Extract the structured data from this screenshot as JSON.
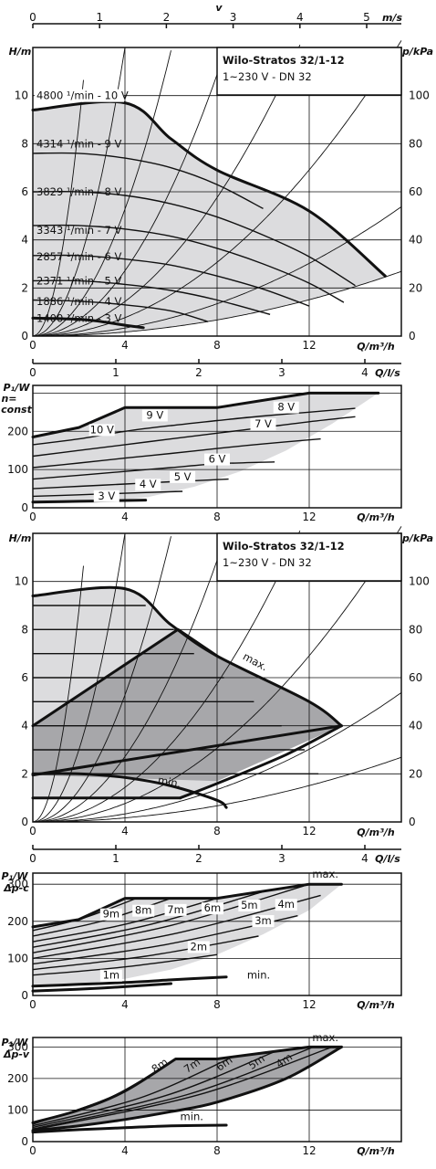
{
  "colors": {
    "light_fill": "#dcdcde",
    "dark_fill": "#a7a7aa",
    "line": "#111111"
  },
  "chart_data": [
    {
      "type": "line",
      "panel": "head-speed-control",
      "title": "Wilo-Stratos 32/1-12",
      "subtitle": "1~230 V - DN 32",
      "xlabel": "Q/m³/h",
      "ylabel": "H/m",
      "y2label": "p/kPa",
      "toplabel": "v",
      "topunit": "m/s",
      "xticks": [
        "0",
        "4",
        "8",
        "12"
      ],
      "yticks": [
        "0",
        "2",
        "4",
        "6",
        "8",
        "10"
      ],
      "y2ticks": [
        "0",
        "20",
        "40",
        "60",
        "80",
        "100"
      ],
      "topticks": [
        "0",
        "1",
        "2",
        "3",
        "4",
        "5"
      ],
      "xlim": [
        0,
        16
      ],
      "ylim": [
        0,
        12
      ],
      "series": [
        {
          "name": "4800 ¹/min - 10 V",
          "x": [
            0,
            4,
            6,
            8,
            12,
            15.3
          ],
          "y": [
            9.4,
            9.7,
            8.2,
            6.9,
            5.2,
            2.5
          ]
        },
        {
          "name": "4314 ¹/min - 9 V",
          "x": [
            0,
            2,
            4,
            6,
            8,
            10
          ],
          "y": [
            7.6,
            7.6,
            7.4,
            7.0,
            6.3,
            5.3
          ]
        },
        {
          "name": "3829 ¹/min - 8 V",
          "x": [
            0,
            2,
            4,
            6,
            8,
            10,
            12,
            14
          ],
          "y": [
            6.0,
            6.0,
            5.85,
            5.5,
            4.95,
            4.2,
            3.3,
            2.1
          ]
        },
        {
          "name": "3343 ¹/min - 7 V",
          "x": [
            0,
            2,
            4,
            6,
            8,
            10,
            12,
            13.5
          ],
          "y": [
            4.6,
            4.6,
            4.45,
            4.15,
            3.65,
            3.0,
            2.2,
            1.4
          ]
        },
        {
          "name": "2857 ¹/min - 6 V",
          "x": [
            0,
            2,
            4,
            6,
            8,
            10,
            12
          ],
          "y": [
            3.35,
            3.35,
            3.2,
            2.95,
            2.5,
            1.95,
            1.25
          ]
        },
        {
          "name": "2371 ¹/min - 5 V",
          "x": [
            0,
            2,
            4,
            6,
            8,
            10.3
          ],
          "y": [
            2.3,
            2.3,
            2.15,
            1.9,
            1.5,
            0.9
          ]
        },
        {
          "name": "1886 ¹/min - 4 V",
          "x": [
            0,
            2,
            4,
            6,
            7.6
          ],
          "y": [
            1.5,
            1.45,
            1.3,
            1.05,
            0.6
          ]
        },
        {
          "name": "1400 ¹/min - 3 V",
          "x": [
            0,
            2,
            3,
            4,
            4.8
          ],
          "y": [
            0.75,
            0.7,
            0.6,
            0.45,
            0.35
          ]
        }
      ]
    },
    {
      "type": "line",
      "panel": "power-n-const",
      "ylabel": "P₁/W",
      "ylabel2": "n=",
      "ylabel3": "const",
      "xlabel": "Q/m³/h",
      "toplabel": "Q/l/s",
      "topticks": [
        "0",
        "1",
        "2",
        "3",
        "4"
      ],
      "xticks": [
        "0",
        "4",
        "8",
        "12"
      ],
      "yticks": [
        "0",
        "100",
        "200"
      ],
      "xlim": [
        0,
        16
      ],
      "ylim": [
        0,
        320
      ],
      "series": [
        {
          "name": "10 V",
          "x": [
            0,
            2,
            4,
            6,
            8,
            12,
            15
          ],
          "y": [
            185,
            210,
            262,
            262,
            262,
            300,
            300
          ]
        },
        {
          "name": "9 V",
          "x": [
            0,
            2,
            4,
            6,
            8,
            10,
            12,
            14
          ],
          "y": [
            165,
            180,
            200,
            215,
            228,
            240,
            250,
            260
          ]
        },
        {
          "name": "8 V",
          "x": [
            0,
            2,
            4,
            6,
            8,
            10,
            12,
            14
          ],
          "y": [
            135,
            150,
            165,
            180,
            195,
            210,
            225,
            238
          ]
        },
        {
          "name": "7 V",
          "x": [
            0,
            2,
            4,
            6,
            8,
            10,
            12.5
          ],
          "y": [
            105,
            117,
            130,
            142,
            155,
            167,
            180
          ]
        },
        {
          "name": "6 V",
          "x": [
            0,
            2,
            4,
            6,
            8,
            10.5
          ],
          "y": [
            75,
            85,
            95,
            105,
            115,
            120
          ]
        },
        {
          "name": "5 V",
          "x": [
            0,
            2,
            4,
            6,
            8.5
          ],
          "y": [
            50,
            56,
            62,
            68,
            75
          ]
        },
        {
          "name": "4 V",
          "x": [
            0,
            2,
            4,
            6.5
          ],
          "y": [
            30,
            34,
            38,
            43
          ]
        },
        {
          "name": "3 V",
          "x": [
            0,
            2,
            4,
            4.9
          ],
          "y": [
            15,
            17,
            19,
            20
          ]
        }
      ]
    },
    {
      "type": "area",
      "panel": "head-dp-modes",
      "title": "Wilo-Stratos 32/1-12",
      "subtitle": "1~230 V - DN 32",
      "xlabel": "Q/m³/h",
      "ylabel": "H/m",
      "y2label": "p/kPa",
      "xticks": [
        "0",
        "4",
        "8",
        "12"
      ],
      "yticks": [
        "0",
        "2",
        "4",
        "6",
        "8",
        "10"
      ],
      "y2ticks": [
        "0",
        "20",
        "40",
        "60",
        "80",
        "100"
      ],
      "xlim": [
        0,
        16
      ],
      "ylim": [
        0,
        12
      ],
      "annotations": [
        "max.",
        "min."
      ],
      "series": [
        {
          "name": "max.",
          "x": [
            0,
            4,
            6,
            8,
            12,
            13.4
          ],
          "y": [
            9.4,
            9.7,
            8.2,
            6.9,
            5.0,
            4.0
          ]
        },
        {
          "name": "min.",
          "x": [
            0,
            2,
            4,
            6,
            8,
            8.4
          ],
          "y": [
            2.0,
            2.0,
            1.85,
            1.5,
            0.9,
            0.6
          ]
        }
      ]
    },
    {
      "type": "line",
      "panel": "power-dp-c",
      "ylabel": "P₁/W",
      "ylabel2": "Δp-c",
      "xlabel": "Q/m³/h",
      "toplabel": "Q/l/s",
      "topticks": [
        "0",
        "1",
        "2",
        "3",
        "4"
      ],
      "xticks": [
        "0",
        "4",
        "8",
        "12"
      ],
      "yticks": [
        "0",
        "100",
        "200",
        "300"
      ],
      "xlim": [
        0,
        16
      ],
      "ylim": [
        0,
        330
      ],
      "labels": [
        "9m",
        "8m",
        "7m",
        "6m",
        "5m",
        "4m",
        "3m",
        "2m",
        "1m",
        "max.",
        "min."
      ],
      "series": [
        {
          "name": "max.",
          "x": [
            0,
            2,
            4,
            8,
            12,
            13.4
          ],
          "y": [
            185,
            205,
            262,
            262,
            300,
            300
          ]
        },
        {
          "name": "min.",
          "x": [
            0,
            2,
            4,
            6,
            8.4
          ],
          "y": [
            25,
            30,
            35,
            42,
            50
          ]
        }
      ]
    },
    {
      "type": "line",
      "panel": "power-dp-v",
      "ylabel": "P₁/W",
      "ylabel2": "Δp-v",
      "xlabel": "Q/m³/h",
      "xticks": [
        "0",
        "4",
        "8",
        "12"
      ],
      "yticks": [
        "0",
        "100",
        "200",
        "300"
      ],
      "xlim": [
        0,
        16
      ],
      "ylim": [
        0,
        330
      ],
      "labels": [
        "8m",
        "7m",
        "6m",
        "5m",
        "4m",
        "max.",
        "min."
      ],
      "series": [
        {
          "name": "max.",
          "x": [
            0,
            2,
            4,
            6.2,
            8,
            12,
            13.4
          ],
          "y": [
            60,
            100,
            160,
            262,
            262,
            300,
            300
          ]
        },
        {
          "name": "min.",
          "x": [
            0,
            2,
            4,
            6,
            8.4
          ],
          "y": [
            30,
            38,
            44,
            50,
            52
          ]
        }
      ]
    }
  ]
}
